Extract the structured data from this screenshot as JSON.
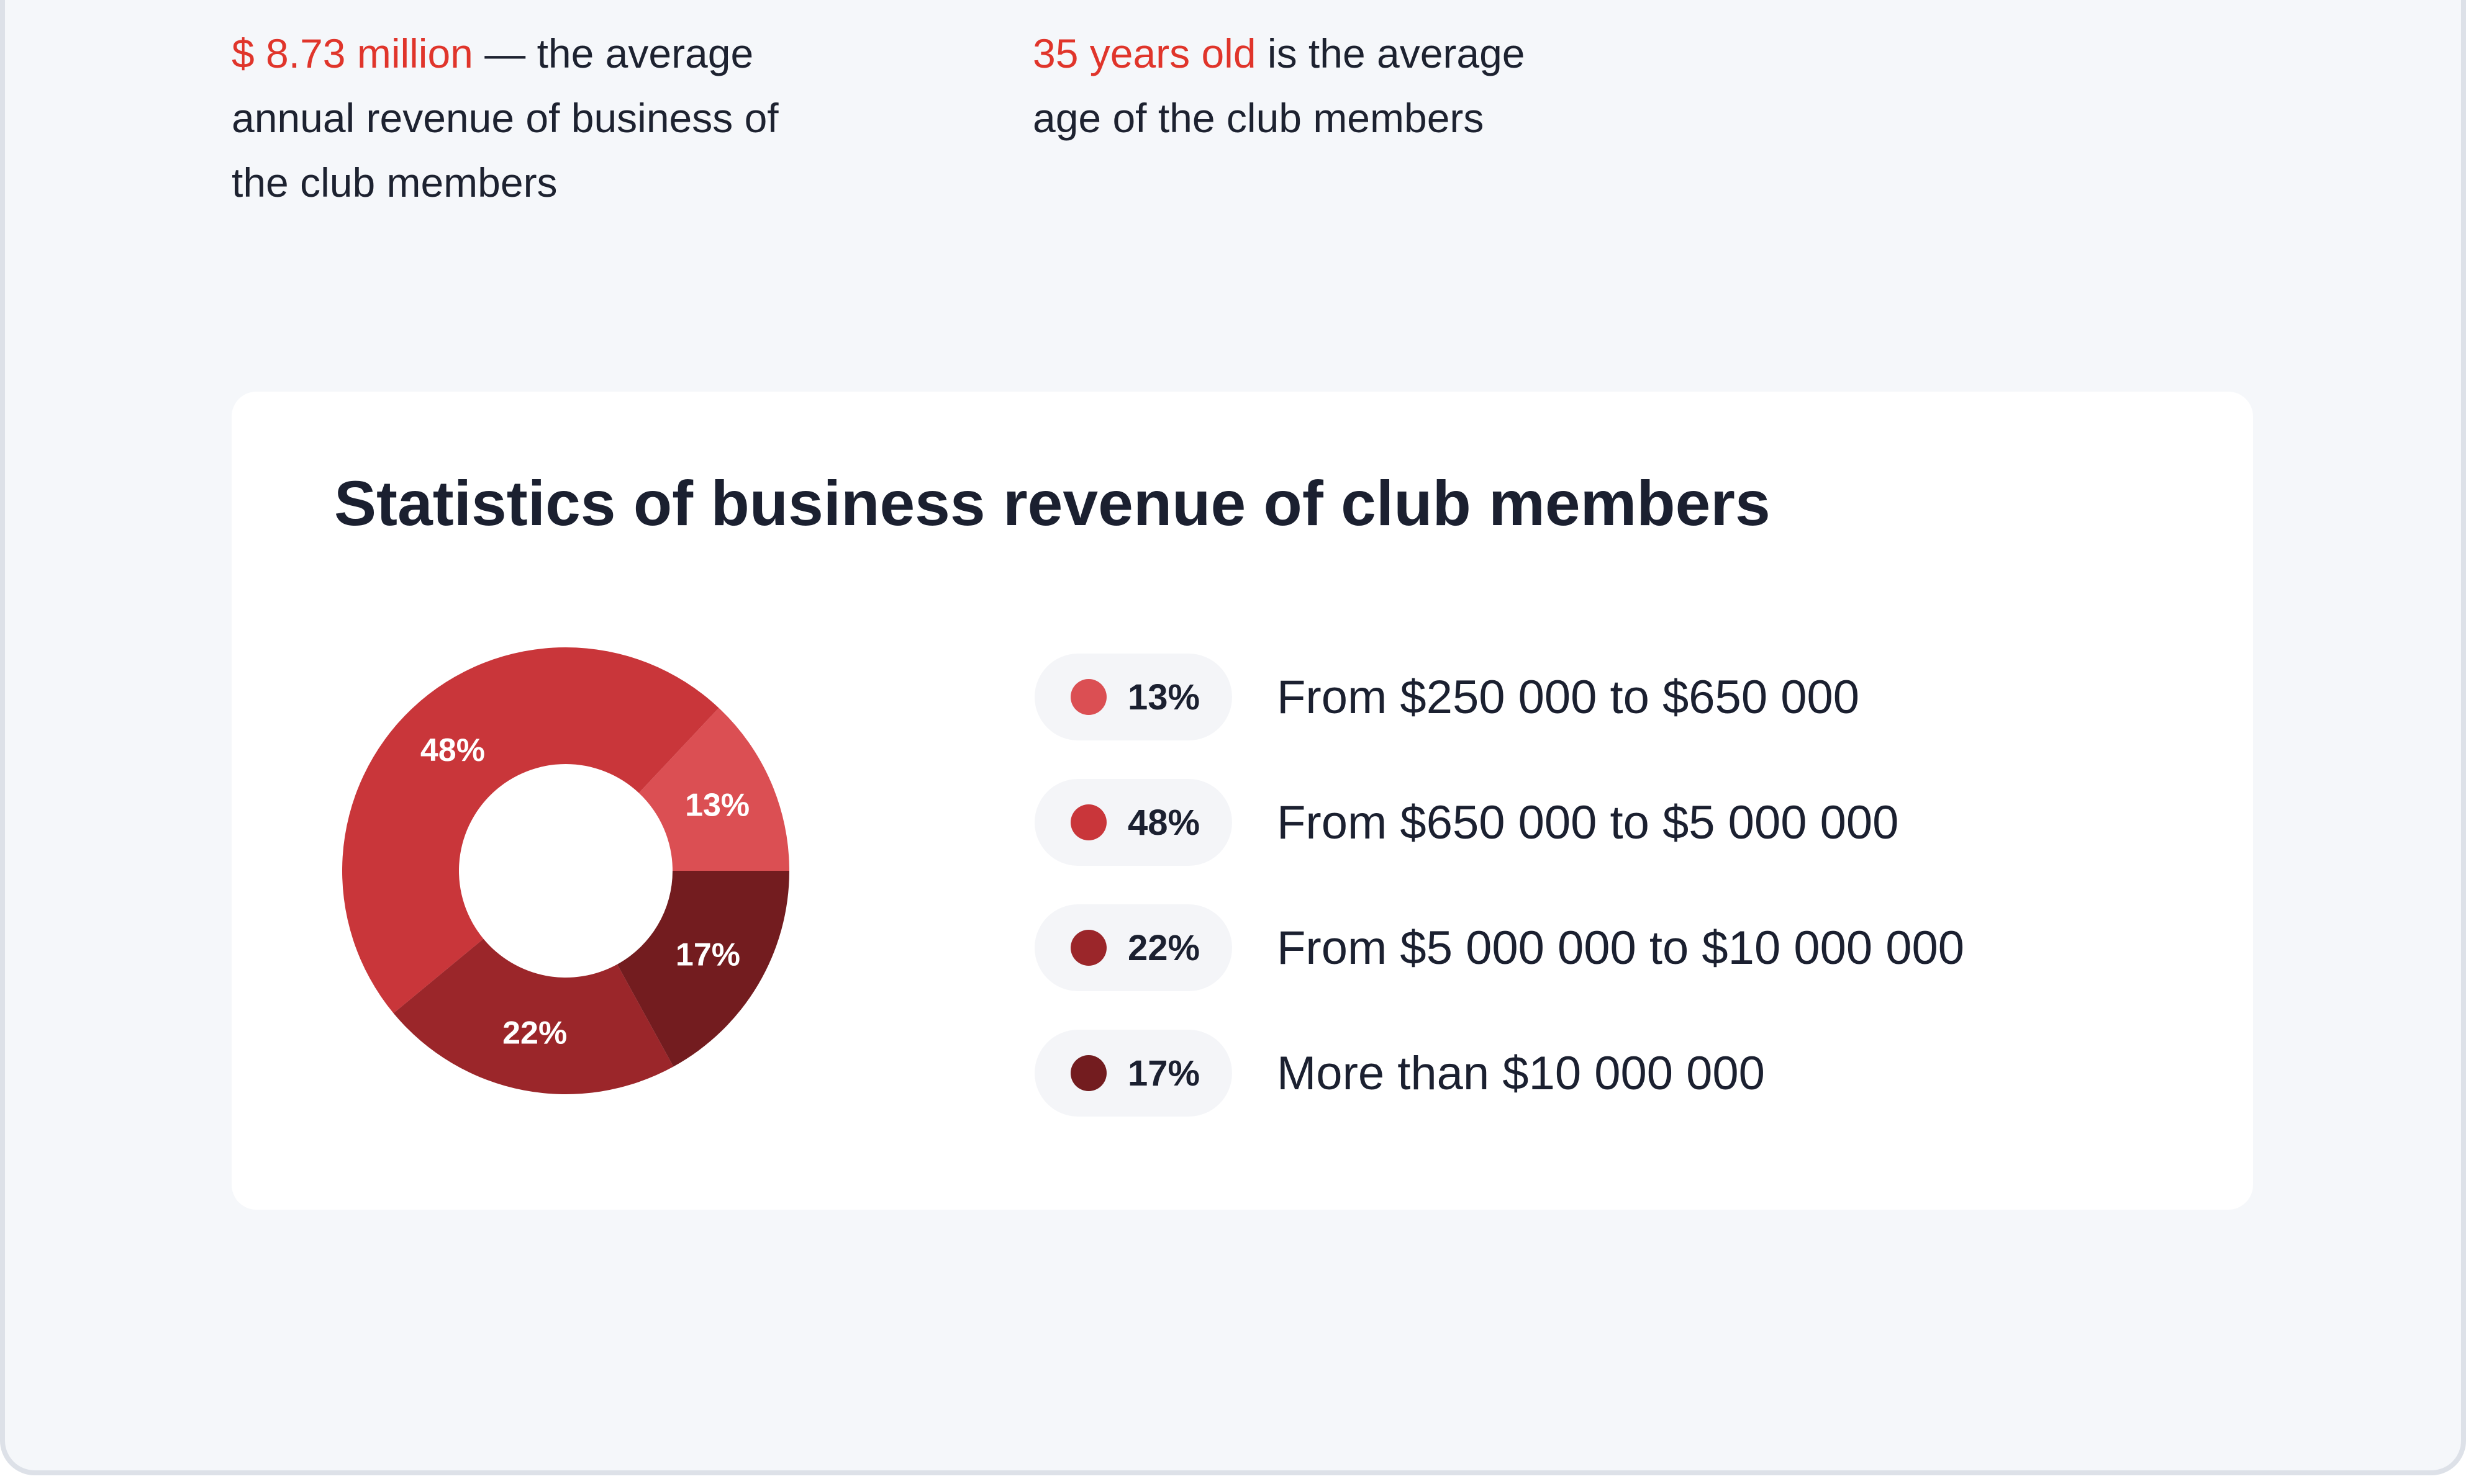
{
  "facts": [
    {
      "highlight": "$ 8.73 million",
      "line1_rest": " — the average",
      "line2": "annual revenue of business of",
      "line3": "the club members"
    },
    {
      "highlight": "35 years old",
      "line1_rest": " is the average",
      "line2": "age of the club members"
    }
  ],
  "colors": {
    "accent_red": "#e0352b",
    "background": "#f5f7fa",
    "card": "#ffffff",
    "text": "#1b2030"
  },
  "chart_data": {
    "type": "pie",
    "title": "Statistics of business revenue of club members",
    "donut": true,
    "categories": [
      "From $250 000 to $650 000",
      "From $650 000 to $5 000 000",
      "From $5 000 000 to $10 000 000",
      "More than $10 000 000"
    ],
    "values": [
      13,
      48,
      22,
      17
    ],
    "value_labels": [
      "13%",
      "48%",
      "22%",
      "17%"
    ],
    "colors": [
      "#db4f53",
      "#c9363a",
      "#9b262a",
      "#731c1f"
    ],
    "legend_position": "right"
  }
}
